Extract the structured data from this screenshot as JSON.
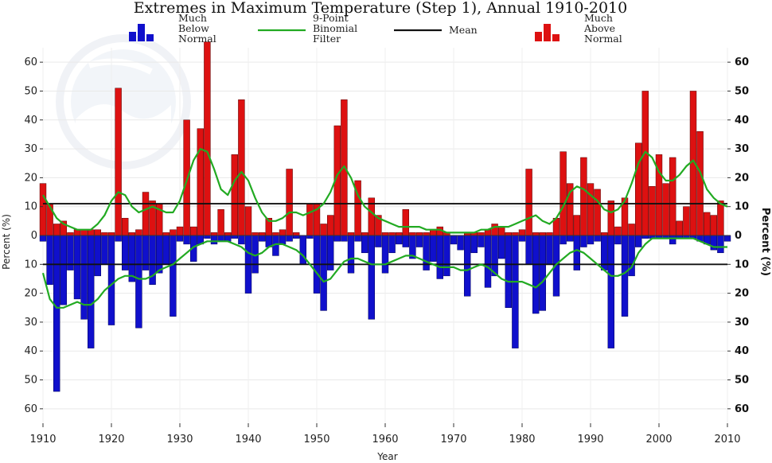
{
  "chart_data": {
    "type": "bar",
    "title": "Extremes in Maximum Temperature (Step 1), Annual  1910-2010",
    "xlabel": "Year",
    "ylabel": "Percent (%)",
    "ylabel_right": "Percent (%)",
    "xlim": [
      1910,
      2010
    ],
    "ylim": [
      -65,
      65
    ],
    "x_ticks": [
      1910,
      1920,
      1930,
      1940,
      1950,
      1960,
      1970,
      1980,
      1990,
      2000,
      2010
    ],
    "y_ticks": [
      {
        "value": 60,
        "label": "60"
      },
      {
        "value": 50,
        "label": "50"
      },
      {
        "value": 40,
        "label": "40"
      },
      {
        "value": 30,
        "label": "30"
      },
      {
        "value": 20,
        "label": "20"
      },
      {
        "value": 10,
        "label": "10"
      },
      {
        "value": 0,
        "label": "0"
      },
      {
        "value": -10,
        "label": "10"
      },
      {
        "value": -20,
        "label": "20"
      },
      {
        "value": -30,
        "label": "30"
      },
      {
        "value": -40,
        "label": "40"
      },
      {
        "value": -50,
        "label": "50"
      },
      {
        "value": -60,
        "label": "60"
      }
    ],
    "grid": true,
    "legend": {
      "placement": "top",
      "entries": [
        {
          "lines": [
            "Much",
            "Below",
            "Normal"
          ],
          "color": "#1010cc",
          "kind": "bars"
        },
        {
          "lines": [
            "9-Point",
            "Binomial",
            "Filter"
          ],
          "color": "#22aa22",
          "kind": "line"
        },
        {
          "lines": [
            "Mean"
          ],
          "color": "#111111",
          "kind": "line"
        },
        {
          "lines": [
            "Much",
            "Above",
            "Normal"
          ],
          "color": "#dd1111",
          "kind": "bars"
        }
      ]
    },
    "colors": {
      "above": "#dd1111",
      "below": "#1010cc",
      "filter": "#22aa22",
      "mean": "#111111"
    },
    "mean_lines": [
      {
        "name": "Mean",
        "value": 11
      },
      {
        "name": "Mean",
        "value": -10
      }
    ],
    "series": [
      {
        "name": "Much Above Normal",
        "x": [
          1910,
          1911,
          1912,
          1913,
          1914,
          1915,
          1916,
          1917,
          1918,
          1919,
          1920,
          1921,
          1922,
          1923,
          1924,
          1925,
          1926,
          1927,
          1928,
          1929,
          1930,
          1931,
          1932,
          1933,
          1934,
          1935,
          1936,
          1937,
          1938,
          1939,
          1940,
          1941,
          1942,
          1943,
          1944,
          1945,
          1946,
          1947,
          1948,
          1949,
          1950,
          1951,
          1952,
          1953,
          1954,
          1955,
          1956,
          1957,
          1958,
          1959,
          1960,
          1961,
          1962,
          1963,
          1964,
          1965,
          1966,
          1967,
          1968,
          1969,
          1970,
          1971,
          1972,
          1973,
          1974,
          1975,
          1976,
          1977,
          1978,
          1979,
          1980,
          1981,
          1982,
          1983,
          1984,
          1985,
          1986,
          1987,
          1988,
          1989,
          1990,
          1991,
          1992,
          1993,
          1994,
          1995,
          1996,
          1997,
          1998,
          1999,
          2000,
          2001,
          2002,
          2003,
          2004,
          2005,
          2006,
          2007,
          2008,
          2009,
          2010
        ],
        "values": [
          18,
          11,
          4,
          5,
          1,
          2,
          2,
          2,
          2,
          1,
          1,
          51,
          6,
          1,
          2,
          15,
          12,
          11,
          1,
          2,
          3,
          40,
          3,
          37,
          67,
          1,
          9,
          1,
          28,
          47,
          10,
          1,
          1,
          6,
          1,
          2,
          23,
          1,
          0,
          11,
          11,
          4,
          7,
          38,
          47,
          1,
          19,
          1,
          13,
          7,
          1,
          1,
          1,
          9,
          1,
          1,
          1,
          2,
          3,
          1,
          0,
          0,
          1,
          1,
          1,
          2,
          4,
          3,
          1,
          1,
          2,
          23,
          1,
          1,
          1,
          6,
          29,
          18,
          7,
          27,
          18,
          16,
          1,
          12,
          3,
          13,
          4,
          32,
          50,
          17,
          28,
          18,
          27,
          5,
          10,
          50,
          36,
          8,
          7,
          12,
          0
        ]
      },
      {
        "name": "Much Below Normal",
        "x": [
          1910,
          1911,
          1912,
          1913,
          1914,
          1915,
          1916,
          1917,
          1918,
          1919,
          1920,
          1921,
          1922,
          1923,
          1924,
          1925,
          1926,
          1927,
          1928,
          1929,
          1930,
          1931,
          1932,
          1933,
          1934,
          1935,
          1936,
          1937,
          1938,
          1939,
          1940,
          1941,
          1942,
          1943,
          1944,
          1945,
          1946,
          1947,
          1948,
          1949,
          1950,
          1951,
          1952,
          1953,
          1954,
          1955,
          1956,
          1957,
          1958,
          1959,
          1960,
          1961,
          1962,
          1963,
          1964,
          1965,
          1966,
          1967,
          1968,
          1969,
          1970,
          1971,
          1972,
          1973,
          1974,
          1975,
          1976,
          1977,
          1978,
          1979,
          1980,
          1981,
          1982,
          1983,
          1984,
          1985,
          1986,
          1987,
          1988,
          1989,
          1990,
          1991,
          1992,
          1993,
          1994,
          1995,
          1996,
          1997,
          1998,
          1999,
          2000,
          2001,
          2002,
          2003,
          2004,
          2005,
          2006,
          2007,
          2008,
          2009,
          2010
        ],
        "values": [
          -2,
          -17,
          -54,
          -24,
          -12,
          -22,
          -29,
          -39,
          -14,
          -10,
          -31,
          -2,
          -12,
          -16,
          -32,
          -12,
          -17,
          -13,
          -10,
          -28,
          -2,
          -3,
          -9,
          -3,
          -1,
          -3,
          -2,
          -2,
          -1,
          -3,
          -20,
          -13,
          -2,
          -4,
          -7,
          -3,
          -2,
          -1,
          -10,
          -1,
          -20,
          -26,
          -12,
          -2,
          -2,
          -13,
          -2,
          -6,
          -29,
          -4,
          -13,
          -6,
          -3,
          -4,
          -8,
          -4,
          -12,
          -9,
          -15,
          -14,
          -3,
          -5,
          -21,
          -6,
          -4,
          -18,
          -14,
          -8,
          -25,
          -39,
          -2,
          -10,
          -27,
          -26,
          -10,
          -21,
          -3,
          -2,
          -12,
          -4,
          -3,
          -2,
          -12,
          -39,
          -3,
          -28,
          -14,
          -4,
          -1,
          -1,
          -1,
          -1,
          -3,
          -1,
          -1,
          -1,
          -2,
          -3,
          -5,
          -6,
          -2
        ]
      },
      {
        "name": "9-Point Binomial Filter",
        "x": [
          1910,
          1911,
          1912,
          1913,
          1914,
          1915,
          1916,
          1917,
          1918,
          1919,
          1920,
          1921,
          1922,
          1923,
          1924,
          1925,
          1926,
          1927,
          1928,
          1929,
          1930,
          1931,
          1932,
          1933,
          1934,
          1935,
          1936,
          1937,
          1938,
          1939,
          1940,
          1941,
          1942,
          1943,
          1944,
          1945,
          1946,
          1947,
          1948,
          1949,
          1950,
          1951,
          1952,
          1953,
          1954,
          1955,
          1956,
          1957,
          1958,
          1959,
          1960,
          1961,
          1962,
          1963,
          1964,
          1965,
          1966,
          1967,
          1968,
          1969,
          1970,
          1971,
          1972,
          1973,
          1974,
          1975,
          1976,
          1977,
          1978,
          1979,
          1980,
          1981,
          1982,
          1983,
          1984,
          1985,
          1986,
          1987,
          1988,
          1989,
          1990,
          1991,
          1992,
          1993,
          1994,
          1995,
          1996,
          1997,
          1998,
          1999,
          2000,
          2001,
          2002,
          2003,
          2004,
          2005,
          2006,
          2007,
          2008,
          2009,
          2010
        ],
        "values": [
          14,
          10,
          6,
          4,
          3,
          2,
          2,
          2,
          4,
          7,
          12,
          15,
          14,
          10,
          8,
          9,
          10,
          9,
          8,
          8,
          12,
          19,
          26,
          30,
          29,
          23,
          16,
          14,
          19,
          22,
          19,
          13,
          8,
          5,
          5,
          6,
          8,
          8,
          7,
          8,
          9,
          11,
          15,
          21,
          24,
          20,
          14,
          10,
          8,
          6,
          5,
          4,
          3,
          3,
          3,
          3,
          2,
          2,
          2,
          1,
          1,
          1,
          1,
          1,
          2,
          2,
          3,
          3,
          3,
          4,
          5,
          6,
          7,
          5,
          4,
          6,
          10,
          15,
          17,
          16,
          14,
          12,
          9,
          8,
          9,
          12,
          18,
          25,
          29,
          27,
          22,
          19,
          19,
          21,
          24,
          26,
          22,
          16,
          13,
          11,
          10
        ]
      },
      {
        "name": "9-Point Binomial Filter (below)",
        "x": [
          1910,
          1911,
          1912,
          1913,
          1914,
          1915,
          1916,
          1917,
          1918,
          1919,
          1920,
          1921,
          1922,
          1923,
          1924,
          1925,
          1926,
          1927,
          1928,
          1929,
          1930,
          1931,
          1932,
          1933,
          1934,
          1935,
          1936,
          1937,
          1938,
          1939,
          1940,
          1941,
          1942,
          1943,
          1944,
          1945,
          1946,
          1947,
          1948,
          1949,
          1950,
          1951,
          1952,
          1953,
          1954,
          1955,
          1956,
          1957,
          1958,
          1959,
          1960,
          1961,
          1962,
          1963,
          1964,
          1965,
          1966,
          1967,
          1968,
          1969,
          1970,
          1971,
          1972,
          1973,
          1974,
          1975,
          1976,
          1977,
          1978,
          1979,
          1980,
          1981,
          1982,
          1983,
          1984,
          1985,
          1986,
          1987,
          1988,
          1989,
          1990,
          1991,
          1992,
          1993,
          1994,
          1995,
          1996,
          1997,
          1998,
          1999,
          2000,
          2001,
          2002,
          2003,
          2004,
          2005,
          2006,
          2007,
          2008,
          2009,
          2010
        ],
        "values": [
          -13,
          -22,
          -25,
          -25,
          -24,
          -23,
          -24,
          -24,
          -22,
          -19,
          -17,
          -15,
          -14,
          -14,
          -15,
          -15,
          -14,
          -12,
          -11,
          -10,
          -8,
          -6,
          -4,
          -3,
          -2,
          -2,
          -2,
          -2,
          -3,
          -4,
          -6,
          -7,
          -6,
          -4,
          -3,
          -3,
          -4,
          -5,
          -7,
          -10,
          -13,
          -16,
          -15,
          -12,
          -9,
          -8,
          -8,
          -9,
          -10,
          -10,
          -10,
          -9,
          -8,
          -7,
          -7,
          -8,
          -9,
          -10,
          -11,
          -11,
          -11,
          -12,
          -12,
          -11,
          -10,
          -11,
          -13,
          -15,
          -16,
          -16,
          -16,
          -17,
          -18,
          -16,
          -13,
          -10,
          -8,
          -6,
          -5,
          -6,
          -8,
          -10,
          -12,
          -14,
          -14,
          -13,
          -11,
          -6,
          -3,
          -1,
          -1,
          -1,
          -1,
          -1,
          -1,
          -1,
          -2,
          -3,
          -4,
          -4,
          -4
        ]
      }
    ]
  }
}
